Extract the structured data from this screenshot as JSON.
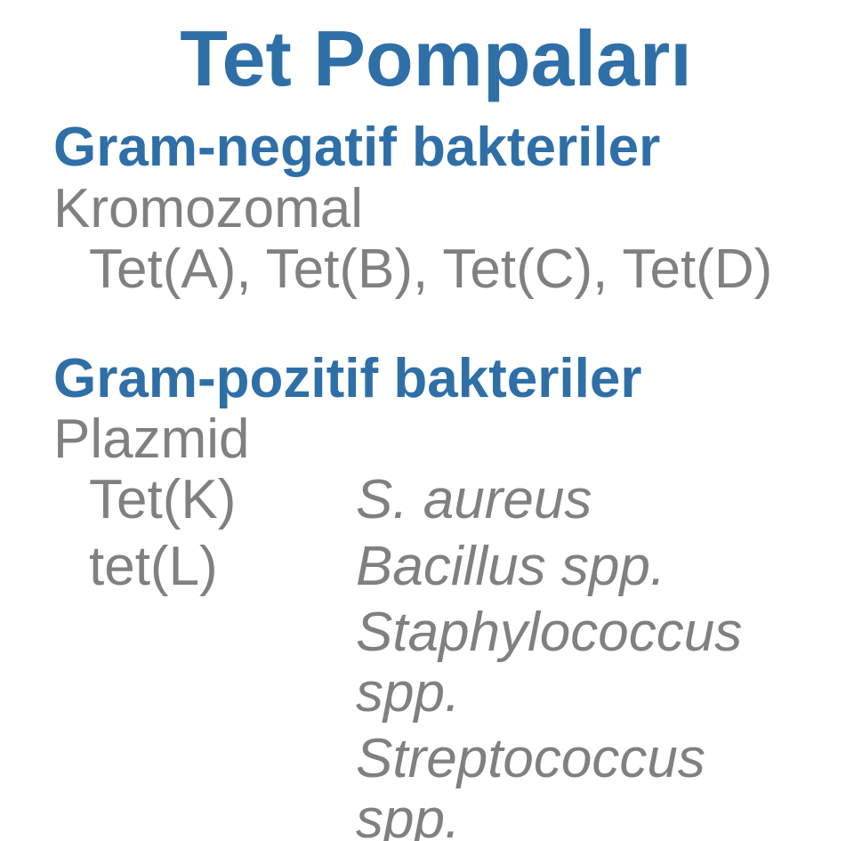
{
  "colors": {
    "heading": "#2f6fa7",
    "body": "#808080",
    "background": "#ffffff"
  },
  "title": "Tet Pompaları",
  "section1": {
    "heading": "Gram-negatif bakteriler",
    "line1": "Kromozomal",
    "line2": "Tet(A), Tet(B), Tet(C), Tet(D)"
  },
  "section2": {
    "heading": "Gram-pozitif bakteriler",
    "line1": "Plazmid",
    "rows": [
      {
        "left": "Tet(K)",
        "right": "S. aureus"
      },
      {
        "left": "tet(L)",
        "right": "Bacillus spp."
      },
      {
        "left": "",
        "right": "Staphylococcus spp."
      },
      {
        "left": "",
        "right": "Streptococcus spp."
      }
    ]
  }
}
